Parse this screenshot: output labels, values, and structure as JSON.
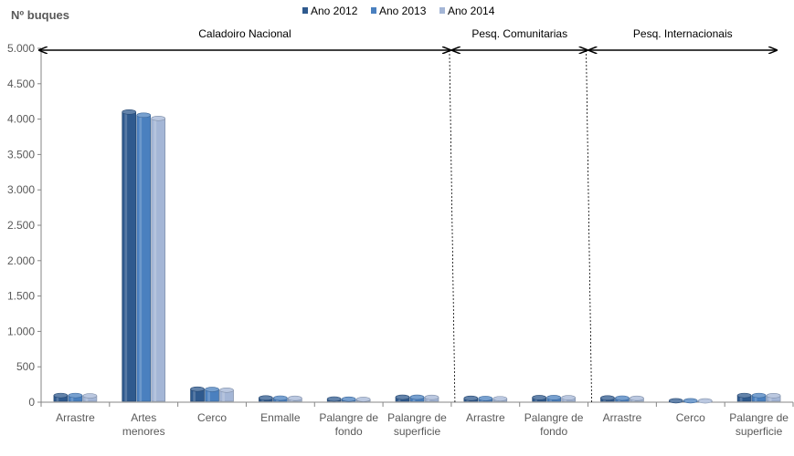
{
  "chart_data": {
    "type": "bar",
    "ylabel": "Nº  buques",
    "ylim": [
      0,
      5000
    ],
    "yticks": [
      0,
      500,
      1000,
      1500,
      2000,
      2500,
      3000,
      3500,
      4000,
      4500,
      5000
    ],
    "ytick_labels": [
      "0",
      "500",
      "1.000",
      "1.500",
      "2.000",
      "2.500",
      "3.000",
      "3.500",
      "4.000",
      "4.500",
      "5.000"
    ],
    "categories": [
      [
        "Arrastre"
      ],
      [
        "Artes",
        "menores"
      ],
      [
        "Cerco"
      ],
      [
        "Enmalle"
      ],
      [
        "Palangre de",
        "fondo"
      ],
      [
        "Palangre de",
        "superficie"
      ],
      [
        "Arrastre"
      ],
      [
        "Palangre de",
        "fondo"
      ],
      [
        "Arrastre"
      ],
      [
        "Cerco"
      ],
      [
        "Palangre de",
        "superficie"
      ]
    ],
    "series": [
      {
        "name": "Ano 2012",
        "color": "#2f5a8e",
        "values": [
          95,
          4100,
          185,
          60,
          45,
          70,
          55,
          65,
          60,
          20,
          95
        ]
      },
      {
        "name": "Ano 2013",
        "color": "#4a80bf",
        "values": [
          95,
          4055,
          180,
          58,
          43,
          70,
          53,
          65,
          58,
          20,
          95
        ]
      },
      {
        "name": "Ano 2014",
        "color": "#a4b6d6",
        "values": [
          90,
          4010,
          170,
          55,
          40,
          68,
          50,
          63,
          55,
          18,
          92
        ]
      }
    ],
    "groups": [
      {
        "label": "Caladoiro Nacional",
        "from": 0,
        "to": 5
      },
      {
        "label": "Pesq. Comunitarias",
        "from": 6,
        "to": 7
      },
      {
        "label": "Pesq. Internacionais",
        "from": 8,
        "to": 10
      }
    ],
    "legend_position": "top",
    "grid": false
  }
}
